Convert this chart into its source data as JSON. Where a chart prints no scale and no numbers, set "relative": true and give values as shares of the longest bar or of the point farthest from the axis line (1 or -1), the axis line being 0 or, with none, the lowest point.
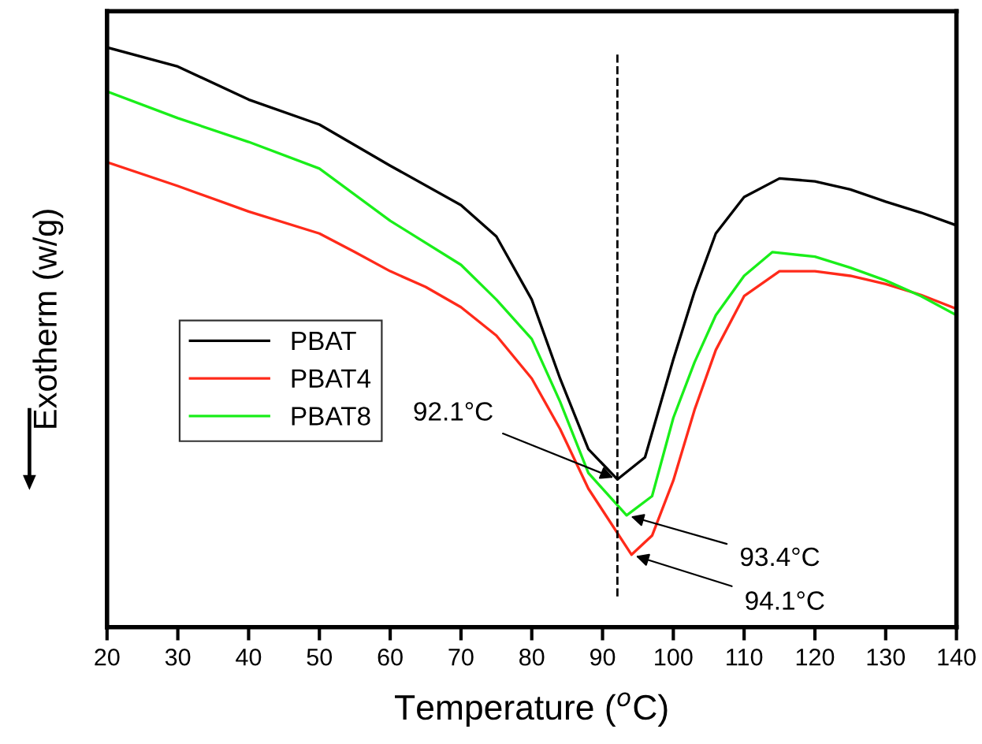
{
  "chart_data": {
    "type": "line",
    "relative": true,
    "xlabel": "Temperature ($^{o}$C)",
    "ylabel": "Exotherm (w/g)",
    "xlim": [
      20,
      140
    ],
    "xticks": [
      20,
      30,
      40,
      50,
      60,
      70,
      80,
      90,
      100,
      110,
      120,
      130,
      140
    ],
    "tick_labels": "x",
    "legend": "left",
    "grid": false,
    "series": [
      {
        "name": "PBAT",
        "color": "#000000",
        "x": [
          20,
          30,
          40,
          50,
          60,
          70,
          75,
          80,
          84,
          88,
          92.1,
          96,
          100,
          103,
          106,
          110,
          115,
          120,
          125,
          130,
          135,
          140
        ],
        "values": [
          1.0,
          0.967,
          0.91,
          0.867,
          0.796,
          0.728,
          0.674,
          0.565,
          0.429,
          0.307,
          0.255,
          0.293,
          0.462,
          0.579,
          0.679,
          0.742,
          0.774,
          0.769,
          0.755,
          0.734,
          0.715,
          0.693
        ]
      },
      {
        "name": "PBAT4",
        "color": "#ff2a1a",
        "x": [
          20,
          30,
          40,
          50,
          55,
          60,
          65,
          70,
          75,
          80,
          84,
          88,
          94.1,
          97,
          100,
          103,
          106,
          110,
          115,
          120,
          125,
          130,
          135,
          140
        ],
        "values": [
          0.802,
          0.761,
          0.717,
          0.679,
          0.647,
          0.614,
          0.587,
          0.552,
          0.503,
          0.429,
          0.342,
          0.239,
          0.125,
          0.158,
          0.253,
          0.375,
          0.478,
          0.571,
          0.614,
          0.614,
          0.606,
          0.592,
          0.573,
          0.549
        ]
      },
      {
        "name": "PBAT8",
        "color": "#1aee1a",
        "x": [
          20,
          30,
          40,
          50,
          60,
          70,
          75,
          80,
          84,
          88,
          93.4,
          97,
          100,
          103,
          106,
          110,
          114,
          120,
          125,
          130,
          135,
          140
        ],
        "values": [
          0.924,
          0.878,
          0.837,
          0.791,
          0.701,
          0.625,
          0.565,
          0.497,
          0.389,
          0.266,
          0.193,
          0.226,
          0.361,
          0.457,
          0.538,
          0.606,
          0.647,
          0.639,
          0.62,
          0.598,
          0.571,
          0.538
        ]
      }
    ],
    "ref_lines": [
      {
        "axis": "x",
        "value": 92.1,
        "color": "#000000",
        "line_style": "dashed"
      }
    ],
    "annotations": [
      {
        "text": "92.1°C",
        "x": 92.1,
        "y": 0.255
      },
      {
        "text": "93.4°C",
        "x": 93.4,
        "y": 0.193
      },
      {
        "text": "94.1°C",
        "x": 94.1,
        "y": 0.125
      }
    ]
  }
}
